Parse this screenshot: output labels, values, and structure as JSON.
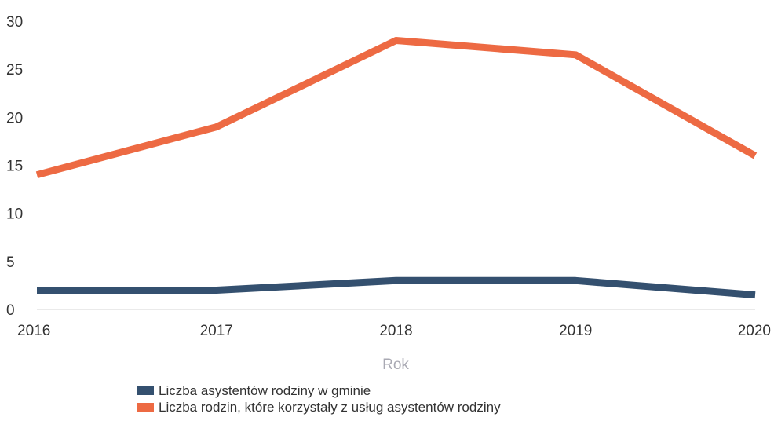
{
  "chart_data": {
    "type": "line",
    "title": "",
    "xlabel": "Rok",
    "ylabel": "",
    "x": [
      "2016",
      "2017",
      "2018",
      "2019",
      "2020"
    ],
    "ylim": [
      0,
      30
    ],
    "yticks": [
      0,
      5,
      10,
      15,
      20,
      25,
      30
    ],
    "grid": false,
    "legend_position": "bottom-center",
    "series": [
      {
        "name": "Liczba asystentów rodziny w gminie",
        "values": [
          2,
          2,
          3,
          3,
          1.5
        ],
        "color": "#34506f"
      },
      {
        "name": "Liczba rodzin, które korzystały z usług asystentów rodziny",
        "values": [
          14,
          19,
          28,
          26.5,
          16
        ],
        "color": "#ed6a43"
      }
    ]
  }
}
